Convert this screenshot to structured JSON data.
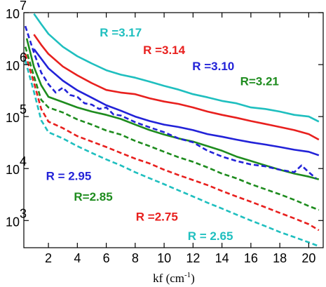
{
  "chart_data": {
    "type": "line",
    "title": "",
    "xlabel": "kf (cm",
    "xlabel_sup": "-1",
    "xlabel_tail": ")",
    "ylabel": "",
    "xlim": [
      0.3,
      21.0
    ],
    "ylim": [
      300,
      10000000
    ],
    "yscale": "log",
    "grid": false,
    "x_ticks": [
      2,
      4,
      6,
      8,
      10,
      12,
      14,
      16,
      18,
      20
    ],
    "x_tick_labels": [
      "2",
      "4",
      "6",
      "8",
      "10",
      "12",
      "14",
      "16",
      "18",
      "20"
    ],
    "y_ticks": [
      1000,
      10000,
      100000,
      1000000,
      10000000
    ],
    "y_tick_labels": [
      {
        "base": "10",
        "exp": "3"
      },
      {
        "base": "10",
        "exp": "4"
      },
      {
        "base": "10",
        "exp": "5"
      },
      {
        "base": "10",
        "exp": "6"
      },
      {
        "base": "10",
        "exp": "7"
      }
    ],
    "series": [
      {
        "name": "R =3.17",
        "color": "#1fbfbf",
        "dash": "solid",
        "points": [
          [
            1.0,
            9500000
          ],
          [
            1.5,
            6000000
          ],
          [
            2,
            3900000
          ],
          [
            3,
            2200000
          ],
          [
            4,
            1450000
          ],
          [
            5,
            1050000
          ],
          [
            6,
            780000
          ],
          [
            7,
            640000
          ],
          [
            8,
            560000
          ],
          [
            9,
            470000
          ],
          [
            10,
            390000
          ],
          [
            11,
            330000
          ],
          [
            12,
            270000
          ],
          [
            13,
            235000
          ],
          [
            14,
            200000
          ],
          [
            15,
            180000
          ],
          [
            16,
            150000
          ],
          [
            17,
            140000
          ],
          [
            18,
            125000
          ],
          [
            19,
            108000
          ],
          [
            20,
            100000
          ],
          [
            20.7,
            80000
          ]
        ]
      },
      {
        "name": "R =3.14",
        "color": "#e8201e",
        "dash": "solid",
        "points": [
          [
            1.0,
            3800000
          ],
          [
            1.5,
            2400000
          ],
          [
            2,
            1600000
          ],
          [
            3,
            920000
          ],
          [
            4,
            620000
          ],
          [
            5,
            440000
          ],
          [
            6,
            325000
          ],
          [
            7,
            290000
          ],
          [
            8,
            270000
          ],
          [
            9,
            225000
          ],
          [
            10,
            195000
          ],
          [
            11,
            175000
          ],
          [
            12,
            150000
          ],
          [
            13,
            125000
          ],
          [
            14,
            108000
          ],
          [
            15,
            95000
          ],
          [
            16,
            82000
          ],
          [
            17,
            72000
          ],
          [
            18,
            63000
          ],
          [
            19,
            55000
          ],
          [
            20,
            46000
          ],
          [
            20.7,
            36000
          ]
        ]
      },
      {
        "name": "R =3.10",
        "color": "#2222d8",
        "dash": "solid",
        "points": [
          [
            1.0,
            2000000
          ],
          [
            1.5,
            1300000
          ],
          [
            2,
            850000
          ],
          [
            3,
            490000
          ],
          [
            4,
            320000
          ],
          [
            5,
            230000
          ],
          [
            6,
            165000
          ],
          [
            7,
            130000
          ],
          [
            8,
            100000
          ],
          [
            9,
            82000
          ],
          [
            10,
            70000
          ],
          [
            11,
            63000
          ],
          [
            12,
            55000
          ],
          [
            13,
            46000
          ],
          [
            14,
            41000
          ],
          [
            15,
            36000
          ],
          [
            16,
            32000
          ],
          [
            17,
            29000
          ],
          [
            18,
            26000
          ],
          [
            19,
            23000
          ],
          [
            20,
            21000
          ],
          [
            20.7,
            18000
          ]
        ]
      },
      {
        "name": "R=3.21",
        "color": "#1e8c1e",
        "dash": "solid",
        "points": [
          [
            0.5,
            3200000
          ],
          [
            1.0,
            900000
          ],
          [
            1.5,
            400000
          ],
          [
            2,
            240000
          ],
          [
            3,
            190000
          ],
          [
            4,
            150000
          ],
          [
            5,
            125000
          ],
          [
            6,
            108000
          ],
          [
            7,
            90000
          ],
          [
            8,
            70000
          ],
          [
            9,
            55000
          ],
          [
            10,
            45000
          ],
          [
            11,
            38000
          ],
          [
            12,
            33000
          ],
          [
            13,
            27000
          ],
          [
            14,
            22000
          ],
          [
            15,
            17000
          ],
          [
            16,
            14000
          ],
          [
            17,
            11500
          ],
          [
            18,
            9500
          ],
          [
            19,
            8000
          ],
          [
            20,
            7000
          ],
          [
            20.7,
            6200
          ]
        ]
      },
      {
        "name": "R = 2.95",
        "color": "#2222d8",
        "dash": "dashed",
        "points": [
          [
            0.4,
            5500000
          ],
          [
            1.0,
            1700000
          ],
          [
            1.5,
            700000
          ],
          [
            2,
            420000
          ],
          [
            2.5,
            290000
          ],
          [
            3,
            360000
          ],
          [
            3.5,
            260000
          ],
          [
            4,
            240000
          ],
          [
            4.5,
            180000
          ],
          [
            5,
            170000
          ],
          [
            5.5,
            140000
          ],
          [
            6,
            150000
          ],
          [
            6.5,
            110000
          ],
          [
            7,
            105000
          ],
          [
            8,
            78000
          ],
          [
            9,
            62000
          ],
          [
            10,
            50000
          ],
          [
            11,
            38000
          ],
          [
            12,
            32000
          ],
          [
            13,
            22000
          ],
          [
            14,
            17000
          ],
          [
            15,
            14000
          ],
          [
            16,
            12000
          ],
          [
            17,
            11000
          ],
          [
            18,
            9500
          ],
          [
            19,
            8500
          ],
          [
            19.5,
            11500
          ],
          [
            20,
            8500
          ],
          [
            20.5,
            6500
          ]
        ]
      },
      {
        "name": "R=2.85",
        "color": "#1e8c1e",
        "dash": "dashed",
        "points": [
          [
            0.4,
            2200000
          ],
          [
            1.0,
            600000
          ],
          [
            1.5,
            210000
          ],
          [
            2,
            150000
          ],
          [
            3,
            120000
          ],
          [
            4,
            88000
          ],
          [
            5,
            70000
          ],
          [
            6,
            54000
          ],
          [
            7,
            45000
          ],
          [
            8,
            34000
          ],
          [
            9,
            27000
          ],
          [
            10,
            21000
          ],
          [
            11,
            16500
          ],
          [
            12,
            13500
          ],
          [
            13,
            10500
          ],
          [
            14,
            8000
          ],
          [
            15,
            6500
          ],
          [
            16,
            5000
          ],
          [
            17,
            4000
          ],
          [
            18,
            3200
          ],
          [
            19,
            2500
          ],
          [
            20,
            1900
          ],
          [
            20.7,
            1600
          ]
        ]
      },
      {
        "name": "R =2.75",
        "color": "#e8201e",
        "dash": "dashed",
        "points": [
          [
            0.4,
            1600000
          ],
          [
            1.0,
            450000
          ],
          [
            1.5,
            140000
          ],
          [
            2,
            80000
          ],
          [
            3,
            60000
          ],
          [
            4,
            42000
          ],
          [
            5,
            33000
          ],
          [
            6,
            26000
          ],
          [
            7,
            20000
          ],
          [
            8,
            15500
          ],
          [
            9,
            12500
          ],
          [
            10,
            9500
          ],
          [
            11,
            7500
          ],
          [
            12,
            6000
          ],
          [
            13,
            4800
          ],
          [
            14,
            3700
          ],
          [
            15,
            2900
          ],
          [
            16,
            2300
          ],
          [
            17,
            1800
          ],
          [
            18,
            1400
          ],
          [
            19,
            1100
          ],
          [
            20,
            850
          ],
          [
            20.7,
            650
          ]
        ]
      },
      {
        "name": "R = 2.65",
        "color": "#1fbfbf",
        "dash": "dashed",
        "points": [
          [
            0.4,
            1200000
          ],
          [
            1.0,
            300000
          ],
          [
            1.5,
            85000
          ],
          [
            2,
            50000
          ],
          [
            3,
            38000
          ],
          [
            4,
            27000
          ],
          [
            5,
            20000
          ],
          [
            6,
            15000
          ],
          [
            7,
            11500
          ],
          [
            8,
            8500
          ],
          [
            9,
            6500
          ],
          [
            10,
            5000
          ],
          [
            11,
            3800
          ],
          [
            12,
            2900
          ],
          [
            13,
            2200
          ],
          [
            14,
            1700
          ],
          [
            15,
            1300
          ],
          [
            16,
            1000
          ],
          [
            17,
            780
          ],
          [
            18,
            600
          ],
          [
            19,
            480
          ],
          [
            20,
            380
          ],
          [
            20.7,
            320
          ]
        ]
      }
    ],
    "annotations": [
      {
        "text": "R =3.17",
        "color": "#1fbfbf",
        "x": 7.0,
        "y": 3500000
      },
      {
        "text": "R =3.14",
        "color": "#e8201e",
        "x": 10.0,
        "y": 1600000
      },
      {
        "text": "R =3.10",
        "color": "#2222d8",
        "x": 13.4,
        "y": 780000
      },
      {
        "text": "R=3.21",
        "color": "#1e8c1e",
        "x": 16.6,
        "y": 400000
      },
      {
        "text": "R = 2.95",
        "color": "#2222d8",
        "x": 3.4,
        "y": 6000
      },
      {
        "text": "R=2.85",
        "color": "#1e8c1e",
        "x": 5.1,
        "y": 2400
      },
      {
        "text": "R =2.75",
        "color": "#e8201e",
        "x": 9.5,
        "y": 1000
      },
      {
        "text": "R = 2.65",
        "color": "#1fbfbf",
        "x": 13.2,
        "y": 420
      }
    ]
  }
}
